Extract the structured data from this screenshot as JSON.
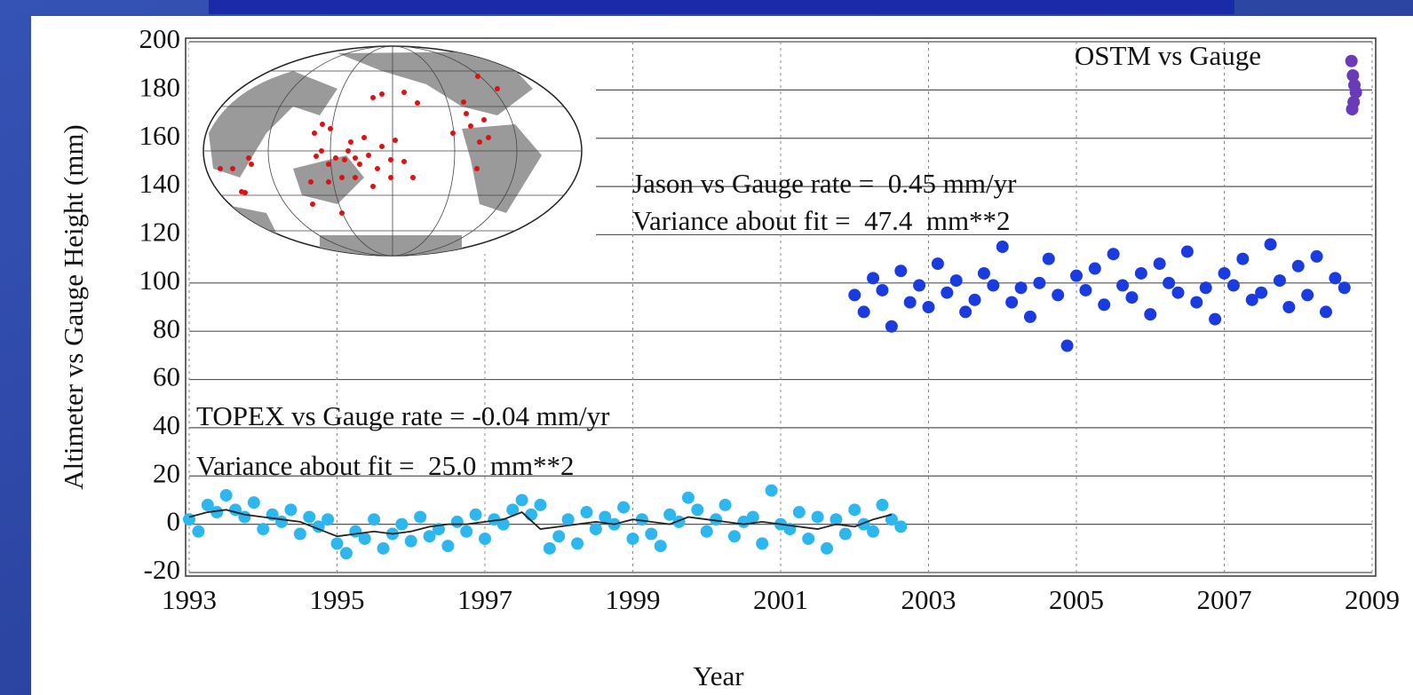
{
  "chart_data": {
    "type": "scatter",
    "x_label": "Year",
    "y_label": "Altimeter vs Gauge Height (mm)",
    "xlim": [
      1993,
      2009
    ],
    "ylim": [
      -20,
      200
    ],
    "xticks": [
      1993,
      1995,
      1997,
      1999,
      2001,
      2003,
      2005,
      2007,
      2009
    ],
    "yticks": [
      -20,
      0,
      20,
      40,
      60,
      80,
      100,
      120,
      140,
      160,
      180,
      200
    ],
    "grid": true,
    "annotations": [
      "OSTM vs Gauge",
      "Jason vs Gauge rate =  0.45 mm/yr",
      "Variance about fit =  47.4  mm**2",
      "TOPEX vs Gauge rate = -0.04 mm/yr",
      "Variance about fit =  25.0  mm**2"
    ],
    "series": [
      {
        "color": "#2eb6ee",
        "mode": "markers",
        "x": [
          1993,
          1993.125,
          1993.25,
          1993.375,
          1993.5,
          1993.625,
          1993.75,
          1993.875,
          1994,
          1994.125,
          1994.25,
          1994.375,
          1994.5,
          1994.625,
          1994.75,
          1994.875,
          1995,
          1995.125,
          1995.25,
          1995.375,
          1995.5,
          1995.625,
          1995.75,
          1995.875,
          1996,
          1996.125,
          1996.25,
          1996.375,
          1996.5,
          1996.625,
          1996.75,
          1996.875,
          1997,
          1997.125,
          1997.25,
          1997.375,
          1997.5,
          1997.625,
          1997.75,
          1997.875,
          1998,
          1998.125,
          1998.25,
          1998.375,
          1998.5,
          1998.625,
          1998.75,
          1998.875,
          1999,
          1999.125,
          1999.25,
          1999.375,
          1999.5,
          1999.625,
          1999.75,
          1999.875,
          2000,
          2000.125,
          2000.25,
          2000.375,
          2000.5,
          2000.625,
          2000.75,
          2000.875,
          2001,
          2001.125,
          2001.25,
          2001.375,
          2001.5,
          2001.625,
          2001.75,
          2001.875,
          2002,
          2002.125,
          2002.25,
          2002.375,
          2002.5,
          2002.625
        ],
        "values": [
          2,
          -3,
          8,
          5,
          12,
          6,
          3,
          9,
          -2,
          4,
          1,
          6,
          -4,
          3,
          -1,
          2,
          -8,
          -12,
          -3,
          -6,
          2,
          -10,
          -4,
          0,
          -7,
          3,
          -5,
          -2,
          -9,
          1,
          -3,
          4,
          -6,
          2,
          0,
          6,
          10,
          4,
          8,
          -10,
          -5,
          2,
          -8,
          5,
          -2,
          3,
          0,
          7,
          -6,
          2,
          -4,
          -9,
          4,
          1,
          11,
          6,
          -3,
          2,
          8,
          -5,
          1,
          3,
          -8,
          14,
          0,
          -2,
          5,
          -6,
          3,
          -10,
          2,
          -4,
          6,
          0,
          -3,
          8,
          2,
          -1
        ]
      },
      {
        "color": "#222222",
        "mode": "line",
        "x": [
          1993,
          1993.25,
          1993.5,
          1993.75,
          1994,
          1994.25,
          1994.5,
          1994.75,
          1995,
          1995.25,
          1995.5,
          1995.75,
          1996,
          1996.25,
          1996.5,
          1996.75,
          1997,
          1997.25,
          1997.5,
          1997.75,
          1998,
          1998.25,
          1998.5,
          1998.75,
          1999,
          1999.25,
          1999.5,
          1999.75,
          2000,
          2000.25,
          2000.5,
          2000.75,
          2001,
          2001.25,
          2001.5,
          2001.75,
          2002,
          2002.25,
          2002.5
        ],
        "values": [
          3,
          5,
          6,
          4,
          3,
          2,
          1,
          -2,
          -5,
          -4,
          -3,
          -4,
          -3,
          -1,
          0,
          0,
          1,
          2,
          5,
          -2,
          -1,
          0,
          1,
          0,
          2,
          1,
          0,
          3,
          2,
          1,
          0,
          1,
          0,
          -1,
          -2,
          0,
          -1,
          2,
          4
        ]
      },
      {
        "color": "#1a3be0",
        "mode": "markers",
        "x": [
          2002,
          2002.125,
          2002.25,
          2002.375,
          2002.5,
          2002.625,
          2002.75,
          2002.875,
          2003,
          2003.125,
          2003.25,
          2003.375,
          2003.5,
          2003.625,
          2003.75,
          2003.875,
          2004,
          2004.125,
          2004.25,
          2004.375,
          2004.5,
          2004.625,
          2004.75,
          2004.875,
          2005,
          2005.125,
          2005.25,
          2005.375,
          2005.5,
          2005.625,
          2005.75,
          2005.875,
          2006,
          2006.125,
          2006.25,
          2006.375,
          2006.5,
          2006.625,
          2006.75,
          2006.875,
          2007,
          2007.125,
          2007.25,
          2007.375,
          2007.5,
          2007.625,
          2007.75,
          2007.875,
          2008,
          2008.125,
          2008.25,
          2008.375,
          2008.5,
          2008.625
        ],
        "values": [
          95,
          88,
          102,
          97,
          82,
          105,
          92,
          99,
          90,
          108,
          96,
          101,
          88,
          93,
          104,
          99,
          115,
          92,
          98,
          86,
          100,
          110,
          95,
          74,
          103,
          97,
          106,
          91,
          112,
          99,
          94,
          104,
          87,
          108,
          100,
          96,
          113,
          92,
          98,
          85,
          104,
          99,
          110,
          93,
          96,
          116,
          101,
          90,
          107,
          95,
          111,
          88,
          102,
          98
        ]
      },
      {
        "color": "#6a3ab8",
        "mode": "markers",
        "x": [
          2008.72,
          2008.74,
          2008.76,
          2008.78,
          2008.75,
          2008.73
        ],
        "values": [
          192,
          186,
          182,
          179,
          175,
          172
        ]
      }
    ]
  }
}
